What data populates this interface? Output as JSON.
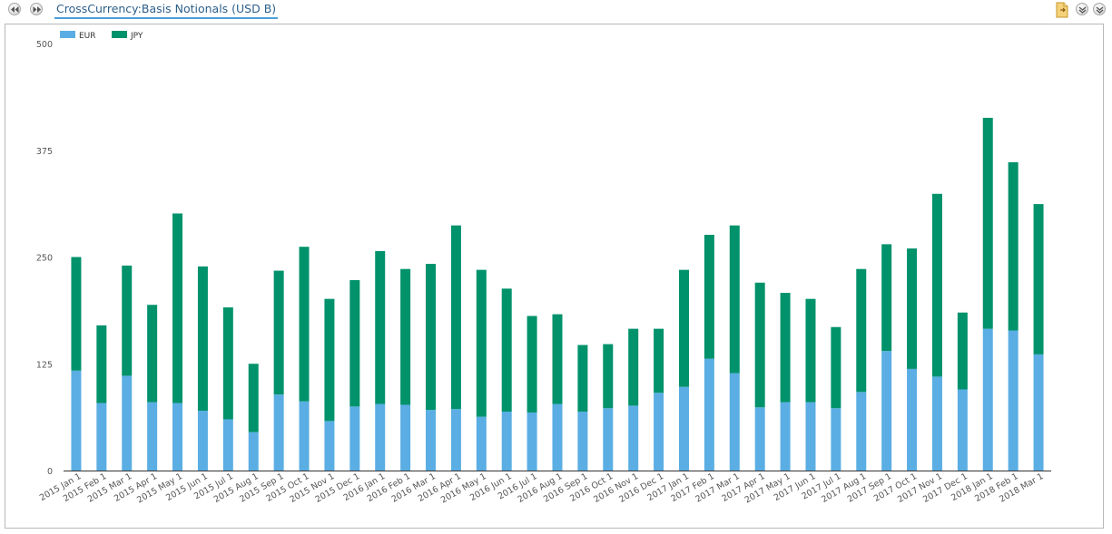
{
  "header": {
    "title": "CrossCurrency:Basis Notionals (USD B)",
    "prev_icon": "rewind-icon",
    "next_icon": "fast-forward-icon",
    "export_icon": "document-export-icon",
    "collapse_icon": "collapse-icon",
    "expand_icon": "expand-icon"
  },
  "chart_data": {
    "type": "bar",
    "stacked": true,
    "categories": [
      "2015 Jan 1",
      "2015 Feb 1",
      "2015 Mar 1",
      "2015 Apr 1",
      "2015 May 1",
      "2015 Jun 1",
      "2015 Jul 1",
      "2015 Aug 1",
      "2015 Sep 1",
      "2015 Oct 1",
      "2015 Nov 1",
      "2015 Dec 1",
      "2016 Jan 1",
      "2016 Feb 1",
      "2016 Mar 1",
      "2016 Apr 1",
      "2016 May 1",
      "2016 Jun 1",
      "2016 Jul 1",
      "2016 Aug 1",
      "2016 Sep 1",
      "2016 Oct 1",
      "2016 Nov 1",
      "2016 Dec 1",
      "2017 Jan 1",
      "2017 Feb 1",
      "2017 Mar 1",
      "2017 Apr 1",
      "2017 May 1",
      "2017 Jun 1",
      "2017 Jul 1",
      "2017 Aug 1",
      "2017 Sep 1",
      "2017 Oct 1",
      "2017 Nov 1",
      "2017 Dec 1",
      "2018 Jan 1",
      "2018 Feb 1",
      "2018 Mar 1"
    ],
    "series": [
      {
        "name": "EUR",
        "color": "#5aaee3",
        "values": [
          117,
          79,
          111,
          80,
          79,
          70,
          60,
          45,
          89,
          81,
          58,
          75,
          78,
          77,
          71,
          72,
          63,
          69,
          68,
          78,
          69,
          73,
          76,
          91,
          98,
          131,
          114,
          74,
          80,
          80,
          73,
          92,
          140,
          119,
          110,
          95,
          166,
          164,
          136
        ]
      },
      {
        "name": "JPY",
        "color": "#00926b",
        "values": [
          133,
          91,
          129,
          114,
          222,
          169,
          131,
          80,
          145,
          181,
          143,
          148,
          179,
          159,
          171,
          215,
          172,
          144,
          113,
          105,
          78,
          75,
          90,
          75,
          137,
          145,
          173,
          146,
          128,
          121,
          95,
          144,
          125,
          141,
          214,
          90,
          247,
          197,
          176
        ]
      }
    ],
    "yticks": [
      0,
      125,
      250,
      375,
      500
    ],
    "ylim": [
      0,
      500
    ],
    "legend_position": "top-left",
    "grid": false
  }
}
